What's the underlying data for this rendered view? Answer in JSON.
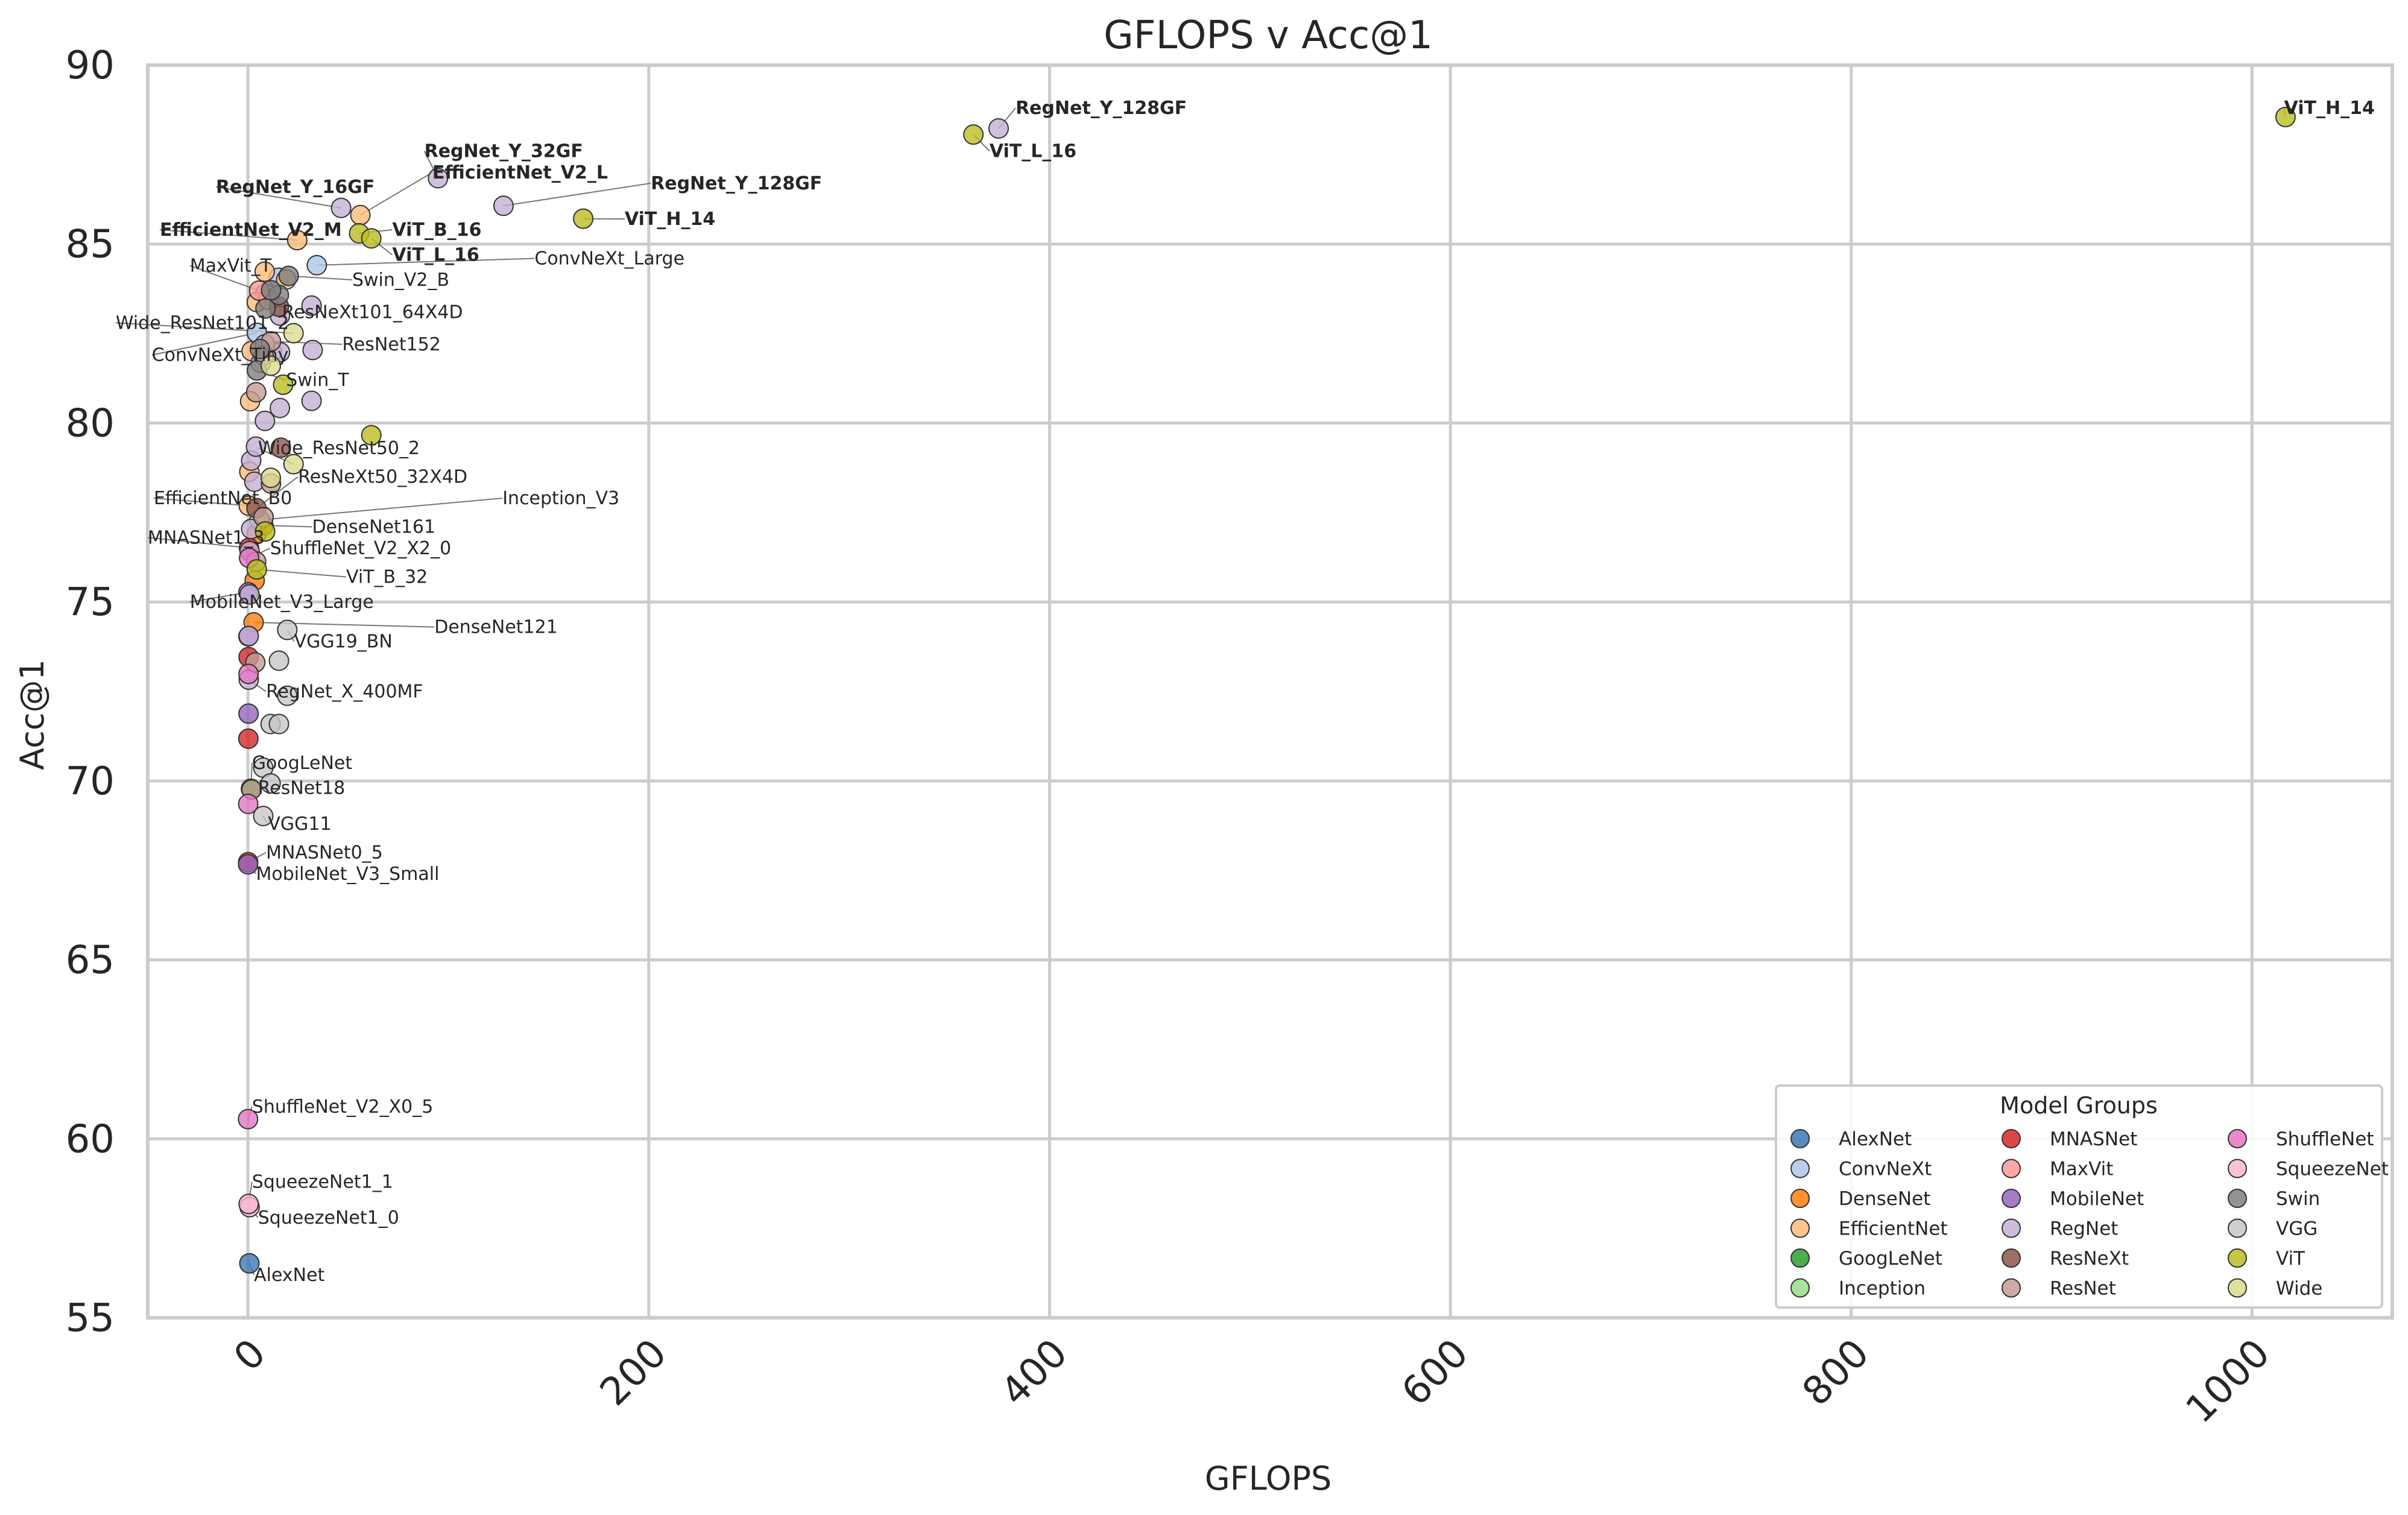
{
  "chart_data": {
    "type": "scatter",
    "title": "GFLOPS v Acc@1",
    "xlabel": "GFLOPS",
    "ylabel": "Acc@1",
    "xlim": [
      -50,
      1070
    ],
    "ylim": [
      55,
      90
    ],
    "xticks": [
      0,
      200,
      400,
      600,
      800,
      1000
    ],
    "yticks": [
      55,
      60,
      65,
      70,
      75,
      80,
      85,
      90
    ],
    "grid": true,
    "legend": {
      "title": "Model Groups",
      "placement": "lower right",
      "columns": 3,
      "entries": [
        {
          "name": "AlexNet",
          "color": "#3a78b4"
        },
        {
          "name": "ConvNeXt",
          "color": "#aec7e8"
        },
        {
          "name": "DenseNet",
          "color": "#ff7f0e"
        },
        {
          "name": "EfficientNet",
          "color": "#ffbb78"
        },
        {
          "name": "GoogLeNet",
          "color": "#2ca02c"
        },
        {
          "name": "Inception",
          "color": "#98df8a"
        },
        {
          "name": "MNASNet",
          "color": "#d62728"
        },
        {
          "name": "MaxVit",
          "color": "#ff9896"
        },
        {
          "name": "MobileNet",
          "color": "#9467bd"
        },
        {
          "name": "RegNet",
          "color": "#c5b0d5"
        },
        {
          "name": "ResNeXt",
          "color": "#8c564b"
        },
        {
          "name": "ResNet",
          "color": "#c49c94"
        },
        {
          "name": "ShuffleNet",
          "color": "#e377c2"
        },
        {
          "name": "SqueezeNet",
          "color": "#f7b6d2"
        },
        {
          "name": "Swin",
          "color": "#7f7f7f"
        },
        {
          "name": "VGG",
          "color": "#c7c7c7"
        },
        {
          "name": "ViT",
          "color": "#bcbd22"
        },
        {
          "name": "Wide",
          "color": "#dbdb8d"
        }
      ]
    },
    "series": [
      {
        "name": "AlexNet",
        "points": [
          [
            0.71,
            56.52
          ]
        ]
      },
      {
        "name": "ConvNeXt",
        "points": [
          [
            4.46,
            82.52
          ],
          [
            8.68,
            83.62
          ],
          [
            15.36,
            84.06
          ],
          [
            34.36,
            84.41
          ]
        ]
      },
      {
        "name": "DenseNet",
        "points": [
          [
            2.83,
            74.43
          ],
          [
            3.36,
            75.6
          ],
          [
            4.29,
            76.9
          ],
          [
            7.73,
            77.14
          ]
        ]
      },
      {
        "name": "EfficientNet",
        "points": [
          [
            0.39,
            77.69
          ],
          [
            0.69,
            78.64
          ],
          [
            1.09,
            80.61
          ],
          [
            1.83,
            82.01
          ],
          [
            4.39,
            83.38
          ],
          [
            10.27,
            83.44
          ],
          [
            19.07,
            84.01
          ],
          [
            8.37,
            84.23
          ],
          [
            24.58,
            85.11
          ],
          [
            56.08,
            85.81
          ]
        ]
      },
      {
        "name": "GoogLeNet",
        "points": [
          [
            1.5,
            69.78
          ]
        ]
      },
      {
        "name": "Inception",
        "points": [
          [
            5.71,
            77.29
          ]
        ]
      },
      {
        "name": "MNASNet",
        "points": [
          [
            0.1,
            67.73
          ],
          [
            0.21,
            71.18
          ],
          [
            0.31,
            73.46
          ],
          [
            0.53,
            76.51
          ]
        ]
      },
      {
        "name": "MaxVit",
        "points": [
          [
            5.56,
            83.7
          ]
        ]
      },
      {
        "name": "MobileNet",
        "points": [
          [
            0.06,
            67.67
          ],
          [
            0.3,
            71.88
          ],
          [
            0.22,
            74.04
          ],
          [
            0.21,
            75.27
          ]
        ]
      },
      {
        "name": "RegNet",
        "points": [
          [
            0.41,
            72.83
          ],
          [
            0.4,
            74.05
          ],
          [
            0.8,
            75.21
          ],
          [
            0.83,
            76.42
          ],
          [
            1.6,
            77.04
          ],
          [
            1.61,
            78.95
          ],
          [
            3.18,
            78.36
          ],
          [
            4.0,
            79.34
          ],
          [
            6.35,
            81.68
          ],
          [
            8.47,
            80.06
          ],
          [
            15.94,
            80.42
          ],
          [
            31.74,
            80.62
          ],
          [
            12.01,
            81.98
          ],
          [
            16.0,
            81.98
          ],
          [
            32.28,
            82.04
          ],
          [
            8.47,
            82.2
          ],
          [
            15.94,
            83.0
          ],
          [
            31.74,
            83.28
          ],
          [
            46.48,
            86.01
          ],
          [
            94.83,
            86.84
          ],
          [
            127.52,
            86.07
          ],
          [
            374.57,
            88.23
          ]
        ]
      },
      {
        "name": "ResNeXt",
        "points": [
          [
            4.23,
            77.62
          ],
          [
            16.41,
            79.31
          ],
          [
            15.46,
            83.25
          ]
        ]
      },
      {
        "name": "ResNet",
        "points": [
          [
            1.81,
            69.76
          ],
          [
            3.66,
            73.31
          ],
          [
            4.09,
            76.13
          ],
          [
            7.8,
            77.37
          ],
          [
            11.51,
            78.31
          ],
          [
            4.09,
            80.86
          ],
          [
            7.8,
            81.89
          ],
          [
            11.51,
            82.28
          ]
        ]
      },
      {
        "name": "ShuffleNet",
        "points": [
          [
            0.04,
            60.55
          ],
          [
            0.14,
            69.36
          ],
          [
            0.3,
            72.99
          ],
          [
            0.58,
            76.23
          ]
        ]
      },
      {
        "name": "SqueezeNet",
        "points": [
          [
            0.82,
            58.09
          ],
          [
            0.35,
            58.18
          ]
        ]
      },
      {
        "name": "Swin",
        "points": [
          [
            4.49,
            81.47
          ],
          [
            8.74,
            83.2
          ],
          [
            15.43,
            83.58
          ],
          [
            5.94,
            82.07
          ],
          [
            11.55,
            83.71
          ],
          [
            20.32,
            84.11
          ]
        ]
      },
      {
        "name": "VGG",
        "points": [
          [
            7.61,
            69.02
          ],
          [
            7.61,
            70.37
          ],
          [
            11.31,
            69.93
          ],
          [
            11.31,
            71.59
          ],
          [
            15.47,
            71.59
          ],
          [
            15.47,
            73.36
          ],
          [
            19.63,
            72.38
          ],
          [
            19.63,
            74.22
          ]
        ]
      },
      {
        "name": "ViT",
        "points": [
          [
            4.41,
            75.91
          ],
          [
            8.57,
            76.97
          ],
          [
            17.56,
            81.07
          ],
          [
            55.48,
            85.3
          ],
          [
            61.55,
            79.66
          ],
          [
            61.55,
            85.16
          ],
          [
            167.29,
            85.71
          ],
          [
            361.99,
            88.06
          ],
          [
            1016.72,
            88.55
          ]
        ]
      },
      {
        "name": "Wide",
        "points": [
          [
            11.4,
            78.47
          ],
          [
            22.75,
            78.85
          ],
          [
            11.4,
            81.6
          ],
          [
            22.75,
            82.51
          ]
        ]
      }
    ],
    "annotations": [
      {
        "text": "RegNet_Y_128GF",
        "bold": true,
        "point": [
          374.57,
          88.23
        ],
        "label": [
          383,
          88.8
        ]
      },
      {
        "text": "ViT_L_16",
        "bold": true,
        "point": [
          361.99,
          88.06
        ],
        "label": [
          370,
          87.6
        ]
      },
      {
        "text": "ViT_H_14",
        "bold": true,
        "point": [
          1016.72,
          88.55
        ],
        "label": [
          1016,
          88.8
        ]
      },
      {
        "text": "RegNet_Y_32GF",
        "bold": true,
        "point": [
          94.83,
          86.84
        ],
        "label": [
          88,
          87.6
        ]
      },
      {
        "text": "EfficientNet_V2_L",
        "bold": true,
        "point": [
          56.08,
          85.81
        ],
        "label": [
          92,
          87.0
        ]
      },
      {
        "text": "RegNet_Y_16GF",
        "bold": true,
        "point": [
          46.48,
          86.01
        ],
        "label": [
          -16,
          86.6
        ]
      },
      {
        "text": "RegNet_Y_128GF",
        "bold": true,
        "point": [
          127.52,
          86.07
        ],
        "label": [
          201,
          86.7
        ]
      },
      {
        "text": "ViT_H_14",
        "bold": true,
        "point": [
          167.29,
          85.71
        ],
        "label": [
          188,
          85.7
        ]
      },
      {
        "text": "EfficientNet_V2_M",
        "bold": true,
        "point": [
          24.58,
          85.11
        ],
        "label": [
          -44,
          85.4
        ]
      },
      {
        "text": "ViT_B_16",
        "bold": true,
        "point": [
          55.48,
          85.3
        ],
        "label": [
          72,
          85.4
        ]
      },
      {
        "text": "ViT_L_16",
        "bold": true,
        "point": [
          61.55,
          85.16
        ],
        "label": [
          72,
          84.7
        ]
      },
      {
        "text": "ConvNeXt_Large",
        "bold": false,
        "point": [
          34.36,
          84.41
        ],
        "label": [
          143,
          84.6
        ]
      },
      {
        "text": "MaxVit_T",
        "bold": false,
        "point": [
          5.56,
          83.7
        ],
        "label": [
          -29,
          84.4
        ]
      },
      {
        "text": "Swin_V2_B",
        "bold": false,
        "point": [
          20.32,
          84.11
        ],
        "label": [
          52,
          84.0
        ]
      },
      {
        "text": "ResNeXt101_64X4D",
        "bold": false,
        "point": [
          15.46,
          83.25
        ],
        "label": [
          17,
          83.1
        ]
      },
      {
        "text": "Wide_ResNet101_2",
        "bold": false,
        "point": [
          22.75,
          82.51
        ],
        "label": [
          -66,
          82.8
        ]
      },
      {
        "text": "ResNet152",
        "bold": false,
        "point": [
          11.51,
          82.28
        ],
        "label": [
          47,
          82.2
        ]
      },
      {
        "text": "ConvNeXt_Tiny",
        "bold": false,
        "point": [
          4.46,
          82.52
        ],
        "label": [
          -48,
          81.9
        ]
      },
      {
        "text": "Swin_T",
        "bold": false,
        "point": [
          4.49,
          81.47
        ],
        "label": [
          19,
          81.2
        ]
      },
      {
        "text": "Wide_ResNet50_2",
        "bold": false,
        "point": [
          22.75,
          78.85
        ],
        "label": [
          5,
          79.3
        ]
      },
      {
        "text": "ResNeXt50_32X4D",
        "bold": false,
        "point": [
          4.23,
          77.62
        ],
        "label": [
          25,
          78.5
        ]
      },
      {
        "text": "EfficientNet_B0",
        "bold": false,
        "point": [
          0.39,
          77.69
        ],
        "label": [
          -47,
          77.9
        ]
      },
      {
        "text": "Inception_V3",
        "bold": false,
        "point": [
          5.71,
          77.29
        ],
        "label": [
          127,
          77.9
        ]
      },
      {
        "text": "DenseNet161",
        "bold": false,
        "point": [
          7.73,
          77.14
        ],
        "label": [
          32,
          77.1
        ]
      },
      {
        "text": "MNASNet1_3",
        "bold": false,
        "point": [
          0.53,
          76.51
        ],
        "label": [
          -50,
          76.8
        ]
      },
      {
        "text": "ShuffleNet_V2_X2_0",
        "bold": false,
        "point": [
          0.58,
          76.23
        ],
        "label": [
          11,
          76.5
        ]
      },
      {
        "text": "ViT_B_32",
        "bold": false,
        "point": [
          4.41,
          75.91
        ],
        "label": [
          49,
          75.7
        ]
      },
      {
        "text": "MobileNet_V3_Large",
        "bold": false,
        "point": [
          0.21,
          75.27
        ],
        "label": [
          -29,
          75.0
        ]
      },
      {
        "text": "DenseNet121",
        "bold": false,
        "point": [
          2.83,
          74.43
        ],
        "label": [
          93,
          74.3
        ]
      },
      {
        "text": "VGG19_BN",
        "bold": false,
        "point": [
          19.63,
          74.22
        ],
        "label": [
          23,
          73.9
        ]
      },
      {
        "text": "RegNet_X_400MF",
        "bold": false,
        "point": [
          0.41,
          72.83
        ],
        "label": [
          9,
          72.5
        ]
      },
      {
        "text": "GoogLeNet",
        "bold": false,
        "point": [
          1.5,
          69.78
        ],
        "label": [
          2,
          70.5
        ]
      },
      {
        "text": "ResNet18",
        "bold": false,
        "point": [
          1.81,
          69.76
        ],
        "label": [
          5,
          69.8
        ]
      },
      {
        "text": "VGG11",
        "bold": false,
        "point": [
          7.61,
          69.02
        ],
        "label": [
          10,
          68.8
        ]
      },
      {
        "text": "MNASNet0_5",
        "bold": false,
        "point": [
          0.1,
          67.73
        ],
        "label": [
          9,
          68.0
        ]
      },
      {
        "text": "MobileNet_V3_Small",
        "bold": false,
        "point": [
          0.06,
          67.67
        ],
        "label": [
          4,
          67.4
        ]
      },
      {
        "text": "ShuffleNet_V2_X0_5",
        "bold": false,
        "point": [
          0.04,
          60.55
        ],
        "label": [
          2,
          60.9
        ]
      },
      {
        "text": "SqueezeNet1_1",
        "bold": false,
        "point": [
          0.35,
          58.18
        ],
        "label": [
          2,
          58.8
        ]
      },
      {
        "text": "SqueezeNet1_0",
        "bold": false,
        "point": [
          0.82,
          58.09
        ],
        "label": [
          5,
          57.8
        ]
      },
      {
        "text": "AlexNet",
        "bold": false,
        "point": [
          0.71,
          56.52
        ],
        "label": [
          3,
          56.2
        ]
      }
    ]
  }
}
